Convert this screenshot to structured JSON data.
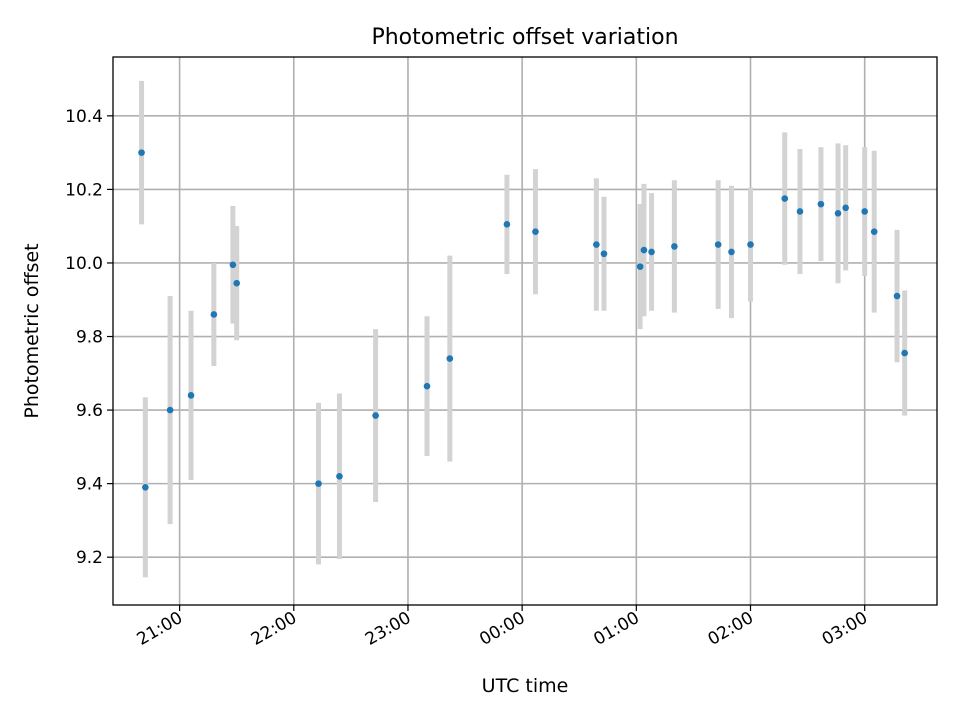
{
  "chart_data": {
    "type": "scatter",
    "title": "Photometric offset variation",
    "xlabel": "UTC time",
    "ylabel": "Photometric offset",
    "x_is_time": true,
    "xlim": [
      "20:25",
      "03:38"
    ],
    "ylim": [
      9.07,
      10.56
    ],
    "xticks": [
      "21:00",
      "22:00",
      "23:00",
      "00:00",
      "01:00",
      "02:00",
      "03:00"
    ],
    "yticks": [
      9.2,
      9.4,
      9.6,
      9.8,
      10.0,
      10.2,
      10.4
    ],
    "grid": true,
    "colors": {
      "point": "#1f77b4",
      "errorbar": "#d3d3d3",
      "grid": "#b0b0b0"
    },
    "series": [
      {
        "points": [
          {
            "x": "20:40",
            "y": 10.3,
            "err": 0.195
          },
          {
            "x": "20:42",
            "y": 9.39,
            "err": 0.245
          },
          {
            "x": "20:55",
            "y": 9.6,
            "err": 0.31
          },
          {
            "x": "21:06",
            "y": 9.64,
            "err": 0.23
          },
          {
            "x": "21:18",
            "y": 9.86,
            "err": 0.14
          },
          {
            "x": "21:28",
            "y": 9.995,
            "err": 0.16
          },
          {
            "x": "21:30",
            "y": 9.945,
            "err": 0.155
          },
          {
            "x": "22:13",
            "y": 9.4,
            "err": 0.22
          },
          {
            "x": "22:24",
            "y": 9.42,
            "err": 0.225
          },
          {
            "x": "22:43",
            "y": 9.585,
            "err": 0.235
          },
          {
            "x": "23:10",
            "y": 9.665,
            "err": 0.19
          },
          {
            "x": "23:22",
            "y": 9.74,
            "err": 0.28
          },
          {
            "x": "23:52",
            "y": 10.105,
            "err": 0.135
          },
          {
            "x": "00:07",
            "y": 10.085,
            "err": 0.17
          },
          {
            "x": "00:39",
            "y": 10.05,
            "err": 0.18
          },
          {
            "x": "00:43",
            "y": 10.025,
            "err": 0.155
          },
          {
            "x": "01:02",
            "y": 9.99,
            "err": 0.17
          },
          {
            "x": "01:04",
            "y": 10.035,
            "err": 0.18
          },
          {
            "x": "01:08",
            "y": 10.03,
            "err": 0.16
          },
          {
            "x": "01:20",
            "y": 10.045,
            "err": 0.18
          },
          {
            "x": "01:43",
            "y": 10.05,
            "err": 0.175
          },
          {
            "x": "01:50",
            "y": 10.03,
            "err": 0.18
          },
          {
            "x": "02:00",
            "y": 10.05,
            "err": 0.155
          },
          {
            "x": "02:18",
            "y": 10.175,
            "err": 0.18
          },
          {
            "x": "02:26",
            "y": 10.14,
            "err": 0.17
          },
          {
            "x": "02:37",
            "y": 10.16,
            "err": 0.155
          },
          {
            "x": "02:46",
            "y": 10.135,
            "err": 0.19
          },
          {
            "x": "02:50",
            "y": 10.15,
            "err": 0.17
          },
          {
            "x": "03:00",
            "y": 10.14,
            "err": 0.175
          },
          {
            "x": "03:05",
            "y": 10.085,
            "err": 0.22
          },
          {
            "x": "03:17",
            "y": 9.91,
            "err": 0.18
          },
          {
            "x": "03:21",
            "y": 9.755,
            "err": 0.17
          }
        ]
      }
    ]
  }
}
